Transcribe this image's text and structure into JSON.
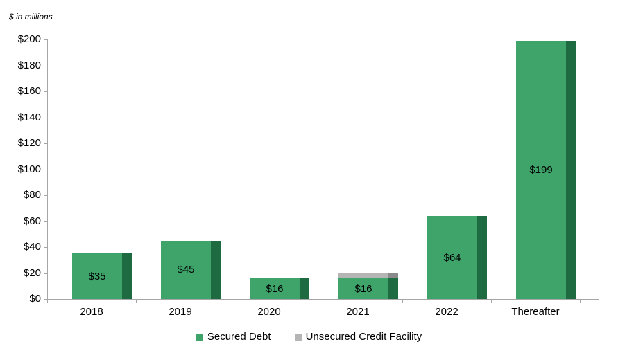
{
  "chart_data": {
    "type": "bar",
    "stacked": true,
    "title": "",
    "unit_note": "$ in millions",
    "categories": [
      "2018",
      "2019",
      "2020",
      "2021",
      "2022",
      "Thereafter"
    ],
    "series": [
      {
        "name": "Secured Debt",
        "color": "#3ea46a",
        "edge_color": "#1e6b41",
        "values": [
          35,
          45,
          16,
          16,
          64,
          199
        ]
      },
      {
        "name": "Unsecured Credit Facility",
        "color": "#b5b5b5",
        "edge_color": "#8b8b8b",
        "values": [
          0,
          0,
          0,
          4,
          0,
          0
        ]
      }
    ],
    "bar_labels": [
      "$35",
      "$45",
      "$16",
      "$16",
      "$64",
      "$199"
    ],
    "ylim": [
      0,
      200
    ],
    "ytick_step": 20,
    "ytick_labels": [
      "$0",
      "$20",
      "$40",
      "$60",
      "$80",
      "$100",
      "$120",
      "$140",
      "$160",
      "$180",
      "$200"
    ],
    "grid": false,
    "legend_position": "bottom",
    "axis_color": "#a6a6a6"
  }
}
